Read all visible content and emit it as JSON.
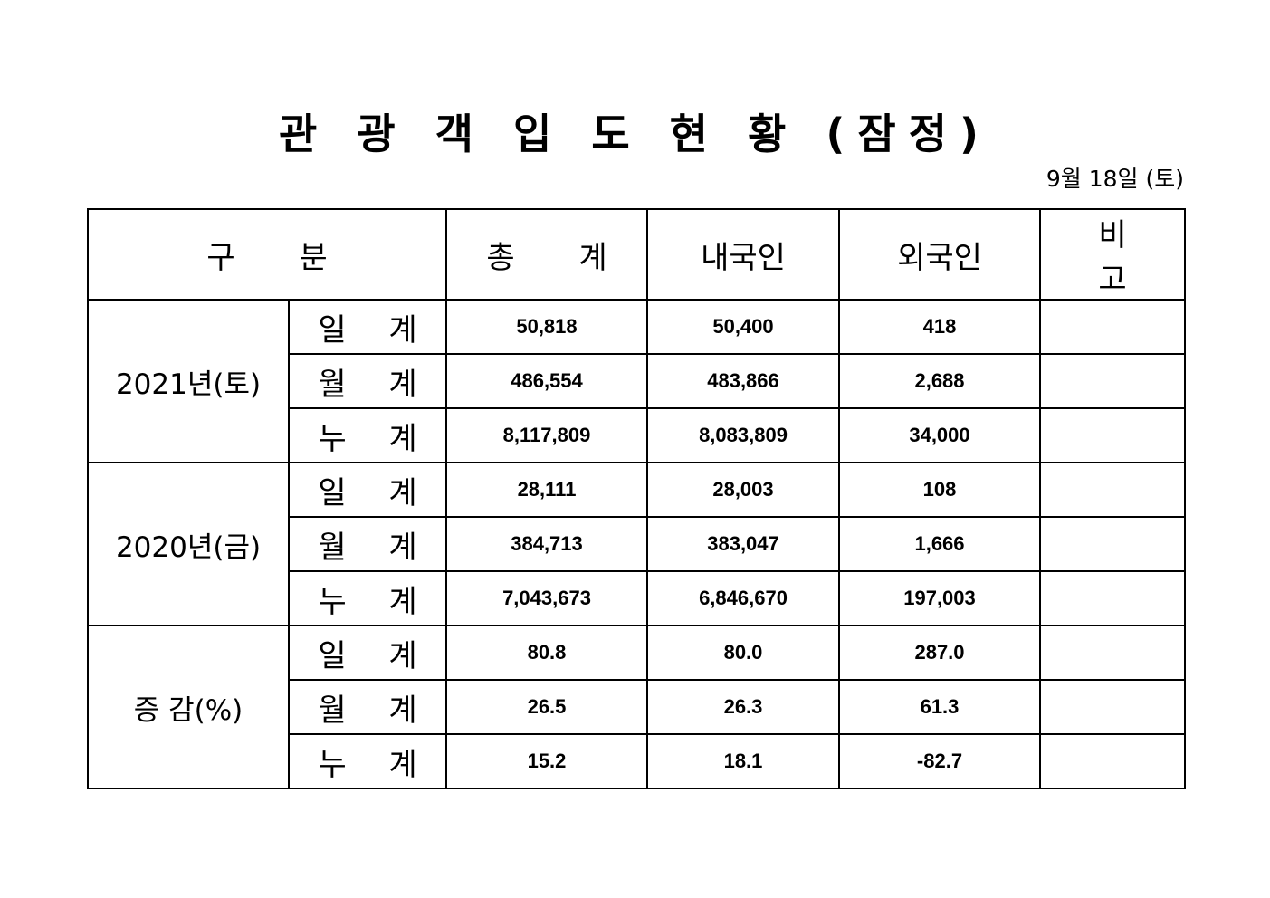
{
  "title": "관 광 객 입 도 현 황 (잠정)",
  "date": "9월  18일  (토)",
  "header": {
    "category": "구 분",
    "total": "총 계",
    "domestic": "내국인",
    "foreign": "외국인",
    "note": "비 고"
  },
  "groups": [
    {
      "label": "2021년(토)",
      "rows": [
        {
          "sub": "일 계",
          "total": "50,818",
          "domestic": "50,400",
          "foreign": "418",
          "note": ""
        },
        {
          "sub": "월 계",
          "total": "486,554",
          "domestic": "483,866",
          "foreign": "2,688",
          "note": ""
        },
        {
          "sub": "누 계",
          "total": "8,117,809",
          "domestic": "8,083,809",
          "foreign": "34,000",
          "note": ""
        }
      ]
    },
    {
      "label": "2020년(금)",
      "rows": [
        {
          "sub": "일 계",
          "total": "28,111",
          "domestic": "28,003",
          "foreign": "108",
          "note": ""
        },
        {
          "sub": "월 계",
          "total": "384,713",
          "domestic": "383,047",
          "foreign": "1,666",
          "note": ""
        },
        {
          "sub": "누 계",
          "total": "7,043,673",
          "domestic": "6,846,670",
          "foreign": "197,003",
          "note": ""
        }
      ]
    },
    {
      "label": "증 감(%)",
      "rows": [
        {
          "sub": "일 계",
          "total": "80.8",
          "domestic": "80.0",
          "foreign": "287.0",
          "note": ""
        },
        {
          "sub": "월 계",
          "total": "26.5",
          "domestic": "26.3",
          "foreign": "61.3",
          "note": ""
        },
        {
          "sub": "누 계",
          "total": "15.2",
          "domestic": "18.1",
          "foreign": "-82.7",
          "note": ""
        }
      ]
    }
  ]
}
